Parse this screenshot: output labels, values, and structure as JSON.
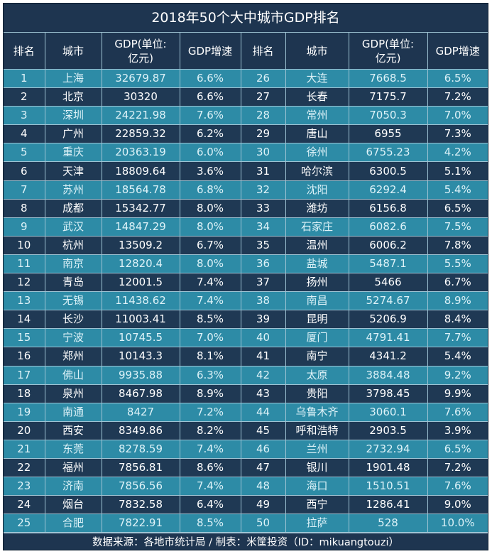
{
  "title": "2018年50个大中城市GDP排名",
  "headers": [
    "排名",
    "城市",
    "GDP(单位:\n亿元)",
    "GDP增速",
    "排名",
    "城市",
    "GDP(单位:\n亿元)",
    "GDP增速"
  ],
  "colors": {
    "header_bg": "#1e3550",
    "row_light": "#2d8ba6",
    "row_dark": "#1f3954",
    "border": "#9fc4d4"
  },
  "rows": [
    {
      "left": {
        "rank": "1",
        "city": "上海",
        "gdp": "32679.87",
        "growth": "6.6%"
      },
      "right": {
        "rank": "26",
        "city": "大连",
        "gdp": "7668.5",
        "growth": "6.5%"
      }
    },
    {
      "left": {
        "rank": "2",
        "city": "北京",
        "gdp": "30320",
        "growth": "6.6%"
      },
      "right": {
        "rank": "27",
        "city": "长春",
        "gdp": "7175.7",
        "growth": "7.2%"
      }
    },
    {
      "left": {
        "rank": "3",
        "city": "深圳",
        "gdp": "24221.98",
        "growth": "7.6%"
      },
      "right": {
        "rank": "28",
        "city": "常州",
        "gdp": "7050.3",
        "growth": "7.0%"
      }
    },
    {
      "left": {
        "rank": "4",
        "city": "广州",
        "gdp": "22859.32",
        "growth": "6.2%"
      },
      "right": {
        "rank": "29",
        "city": "唐山",
        "gdp": "6955",
        "growth": "7.3%"
      }
    },
    {
      "left": {
        "rank": "5",
        "city": "重庆",
        "gdp": "20363.19",
        "growth": "6.0%"
      },
      "right": {
        "rank": "30",
        "city": "徐州",
        "gdp": "6755.23",
        "growth": "4.2%"
      }
    },
    {
      "left": {
        "rank": "6",
        "city": "天津",
        "gdp": "18809.64",
        "growth": "3.6%"
      },
      "right": {
        "rank": "31",
        "city": "哈尔滨",
        "gdp": "6300.5",
        "growth": "5.1%"
      }
    },
    {
      "left": {
        "rank": "7",
        "city": "苏州",
        "gdp": "18564.78",
        "growth": "6.8%"
      },
      "right": {
        "rank": "32",
        "city": "沈阳",
        "gdp": "6292.4",
        "growth": "5.4%"
      }
    },
    {
      "left": {
        "rank": "8",
        "city": "成都",
        "gdp": "15342.77",
        "growth": "8.0%"
      },
      "right": {
        "rank": "33",
        "city": "潍坊",
        "gdp": "6156.8",
        "growth": "6.5%"
      }
    },
    {
      "left": {
        "rank": "9",
        "city": "武汉",
        "gdp": "14847.29",
        "growth": "8.0%"
      },
      "right": {
        "rank": "34",
        "city": "石家庄",
        "gdp": "6082.6",
        "growth": "7.5%"
      }
    },
    {
      "left": {
        "rank": "10",
        "city": "杭州",
        "gdp": "13509.2",
        "growth": "6.7%"
      },
      "right": {
        "rank": "35",
        "city": "温州",
        "gdp": "6006.2",
        "growth": "7.8%"
      }
    },
    {
      "left": {
        "rank": "11",
        "city": "南京",
        "gdp": "12820.4",
        "growth": "8.0%"
      },
      "right": {
        "rank": "36",
        "city": "盐城",
        "gdp": "5487.1",
        "growth": "5.5%"
      }
    },
    {
      "left": {
        "rank": "12",
        "city": "青岛",
        "gdp": "12001.5",
        "growth": "7.4%"
      },
      "right": {
        "rank": "37",
        "city": "扬州",
        "gdp": "5466",
        "growth": "6.7%"
      }
    },
    {
      "left": {
        "rank": "13",
        "city": "无锡",
        "gdp": "11438.62",
        "growth": "7.4%"
      },
      "right": {
        "rank": "38",
        "city": "南昌",
        "gdp": "5274.67",
        "growth": "8.9%"
      }
    },
    {
      "left": {
        "rank": "14",
        "city": "长沙",
        "gdp": "11003.41",
        "growth": "8.5%"
      },
      "right": {
        "rank": "39",
        "city": "昆明",
        "gdp": "5206.9",
        "growth": "8.4%"
      }
    },
    {
      "left": {
        "rank": "15",
        "city": "宁波",
        "gdp": "10745.5",
        "growth": "7.0%"
      },
      "right": {
        "rank": "40",
        "city": "厦门",
        "gdp": "4791.41",
        "growth": "7.7%"
      }
    },
    {
      "left": {
        "rank": "16",
        "city": "郑州",
        "gdp": "10143.3",
        "growth": "8.1%"
      },
      "right": {
        "rank": "41",
        "city": "南宁",
        "gdp": "4341.2",
        "growth": "5.4%"
      }
    },
    {
      "left": {
        "rank": "17",
        "city": "佛山",
        "gdp": "9935.88",
        "growth": "6.3%"
      },
      "right": {
        "rank": "42",
        "city": "太原",
        "gdp": "3884.48",
        "growth": "9.2%"
      }
    },
    {
      "left": {
        "rank": "18",
        "city": "泉州",
        "gdp": "8467.98",
        "growth": "8.9%"
      },
      "right": {
        "rank": "43",
        "city": "贵阳",
        "gdp": "3798.45",
        "growth": "9.9%"
      }
    },
    {
      "left": {
        "rank": "19",
        "city": "南通",
        "gdp": "8427",
        "growth": "7.2%"
      },
      "right": {
        "rank": "44",
        "city": "乌鲁木齐",
        "gdp": "3060.1",
        "growth": "7.6%"
      }
    },
    {
      "left": {
        "rank": "20",
        "city": "西安",
        "gdp": "8349.86",
        "growth": "8.2%"
      },
      "right": {
        "rank": "45",
        "city": "呼和浩特",
        "gdp": "2903.5",
        "growth": "3.9%"
      }
    },
    {
      "left": {
        "rank": "21",
        "city": "东莞",
        "gdp": "8278.59",
        "growth": "7.4%"
      },
      "right": {
        "rank": "46",
        "city": "兰州",
        "gdp": "2732.94",
        "growth": "6.5%"
      }
    },
    {
      "left": {
        "rank": "22",
        "city": "福州",
        "gdp": "7856.81",
        "growth": "8.6%"
      },
      "right": {
        "rank": "47",
        "city": "银川",
        "gdp": "1901.48",
        "growth": "7.2%"
      }
    },
    {
      "left": {
        "rank": "23",
        "city": "济南",
        "gdp": "7856.56",
        "growth": "7.4%"
      },
      "right": {
        "rank": "48",
        "city": "海口",
        "gdp": "1510.51",
        "growth": "7.6%"
      }
    },
    {
      "left": {
        "rank": "24",
        "city": "烟台",
        "gdp": "7832.58",
        "growth": "6.4%"
      },
      "right": {
        "rank": "49",
        "city": "西宁",
        "gdp": "1286.41",
        "growth": "9.0%"
      }
    },
    {
      "left": {
        "rank": "25",
        "city": "合肥",
        "gdp": "7822.91",
        "growth": "8.5%"
      },
      "right": {
        "rank": "50",
        "city": "拉萨",
        "gdp": "528",
        "growth": "10.0%"
      }
    }
  ],
  "footer": "数据来源：各地市统计局 / 制表：米筐投资（ID：mikuangtouzi）"
}
